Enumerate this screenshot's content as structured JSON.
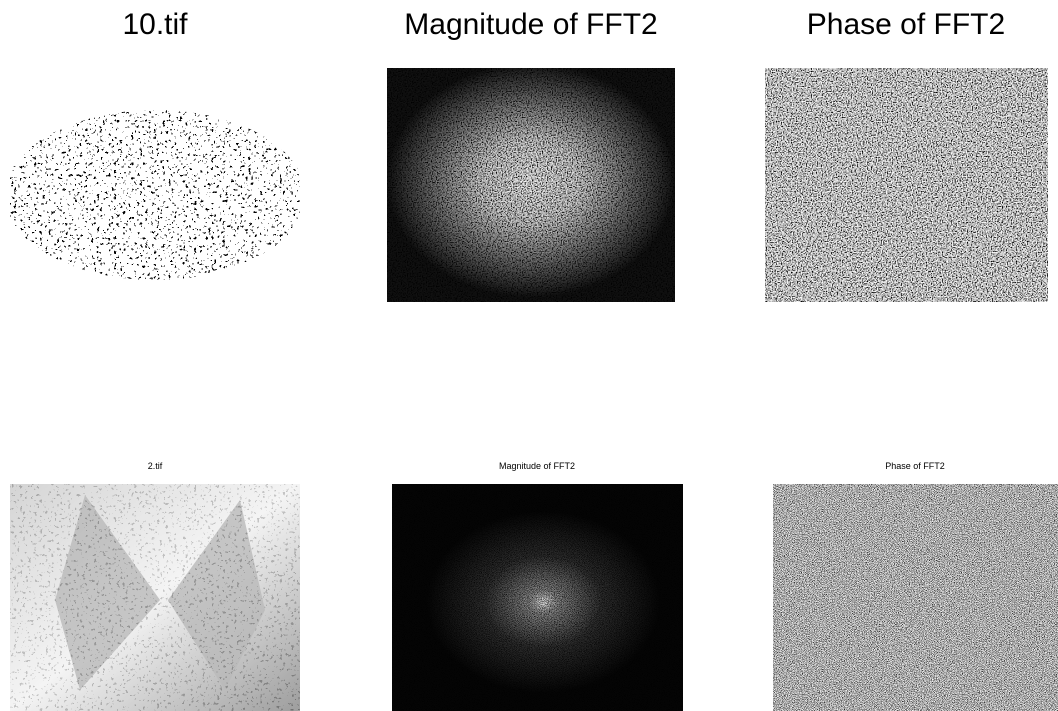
{
  "panels": [
    {
      "title": "10.tif"
    },
    {
      "title": "Magnitude of FFT2"
    },
    {
      "title": "Phase of FFT2"
    },
    {
      "title": "2.tif"
    },
    {
      "title": "Magnitude of FFT2"
    },
    {
      "title": "Phase of FFT2"
    }
  ]
}
